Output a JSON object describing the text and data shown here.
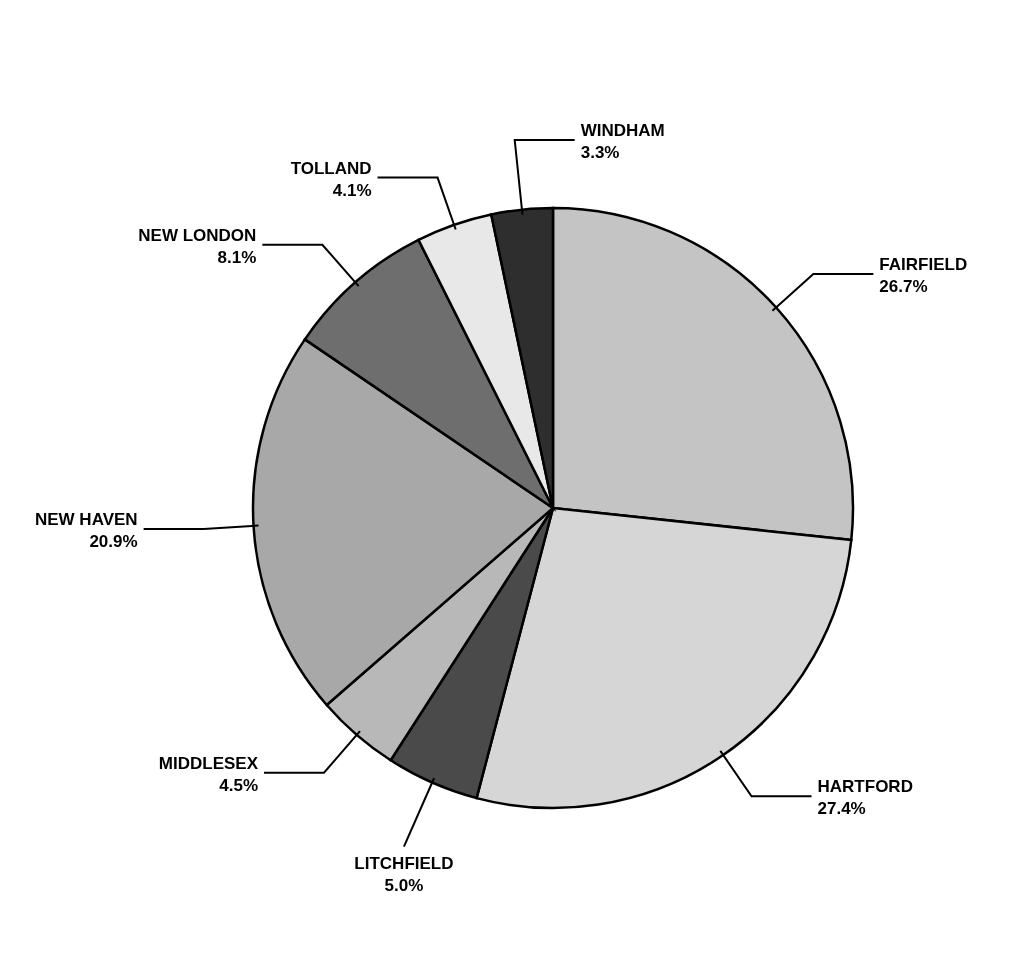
{
  "chart_data": {
    "type": "pie",
    "categories": [
      "FAIRFIELD",
      "HARTFORD",
      "LITCHFIELD",
      "MIDDLESEX",
      "NEW HAVEN",
      "NEW LONDON",
      "TOLLAND",
      "WINDHAM"
    ],
    "values": [
      26.7,
      27.4,
      5.0,
      4.5,
      20.9,
      8.1,
      4.1,
      3.3
    ],
    "value_labels": [
      "26.7%",
      "27.4%",
      "5.0%",
      "4.5%",
      "20.9%",
      "8.1%",
      "4.1%",
      "3.3%"
    ],
    "colors": [
      "#c4c4c4",
      "#d6d6d6",
      "#4a4a4a",
      "#b8b8b8",
      "#a8a8a8",
      "#6e6e6e",
      "#e8e8e8",
      "#2e2e2e"
    ],
    "legend": false
  }
}
